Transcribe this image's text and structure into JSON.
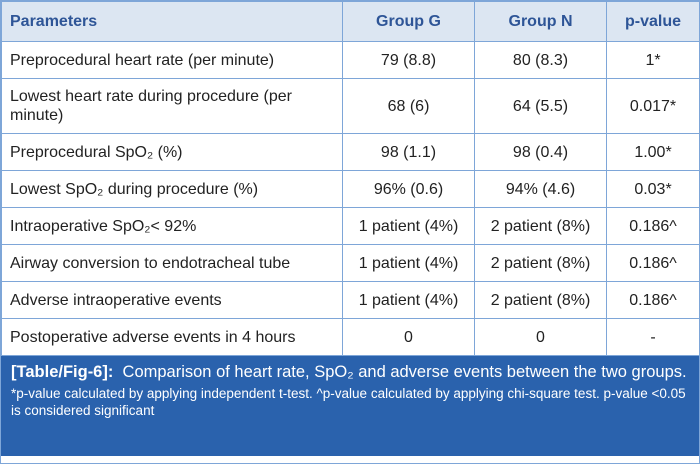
{
  "table": {
    "header": [
      "Parameters",
      "Group G",
      "Group N",
      "p-value"
    ],
    "rows": [
      [
        "Preprocedural heart rate (per minute)",
        "79 (8.8)",
        "80 (8.3)",
        "1*"
      ],
      [
        "Lowest heart rate during procedure (per minute)",
        "68 (6)",
        "64 (5.5)",
        "0.017*"
      ],
      [
        "Preprocedural SpO₂ (%)",
        "98 (1.1)",
        "98 (0.4)",
        "1.00*"
      ],
      [
        "Lowest SpO₂ during procedure (%)",
        "96% (0.6)",
        "94% (4.6)",
        "0.03*"
      ],
      [
        "Intraoperative SpO₂< 92%",
        "1 patient (4%)",
        "2 patient (8%)",
        "0.186^"
      ],
      [
        "Airway conversion to endotracheal tube",
        "1 patient (4%)",
        "2 patient (8%)",
        "0.186^"
      ],
      [
        "Adverse intraoperative events",
        "1 patient (4%)",
        "2 patient (8%)",
        "0.186^"
      ],
      [
        "Postoperative adverse events in 4 hours",
        "0",
        "0",
        "-"
      ]
    ]
  },
  "caption": {
    "label": "[Table/Fig-6]:",
    "title": "Comparison of heart rate, SpO₂ and adverse events between the two groups.",
    "notes": "*p-value calculated by applying independent t-test. ^p-value calculated by applying chi-square test. p-value <0.05 is considered significant"
  }
}
